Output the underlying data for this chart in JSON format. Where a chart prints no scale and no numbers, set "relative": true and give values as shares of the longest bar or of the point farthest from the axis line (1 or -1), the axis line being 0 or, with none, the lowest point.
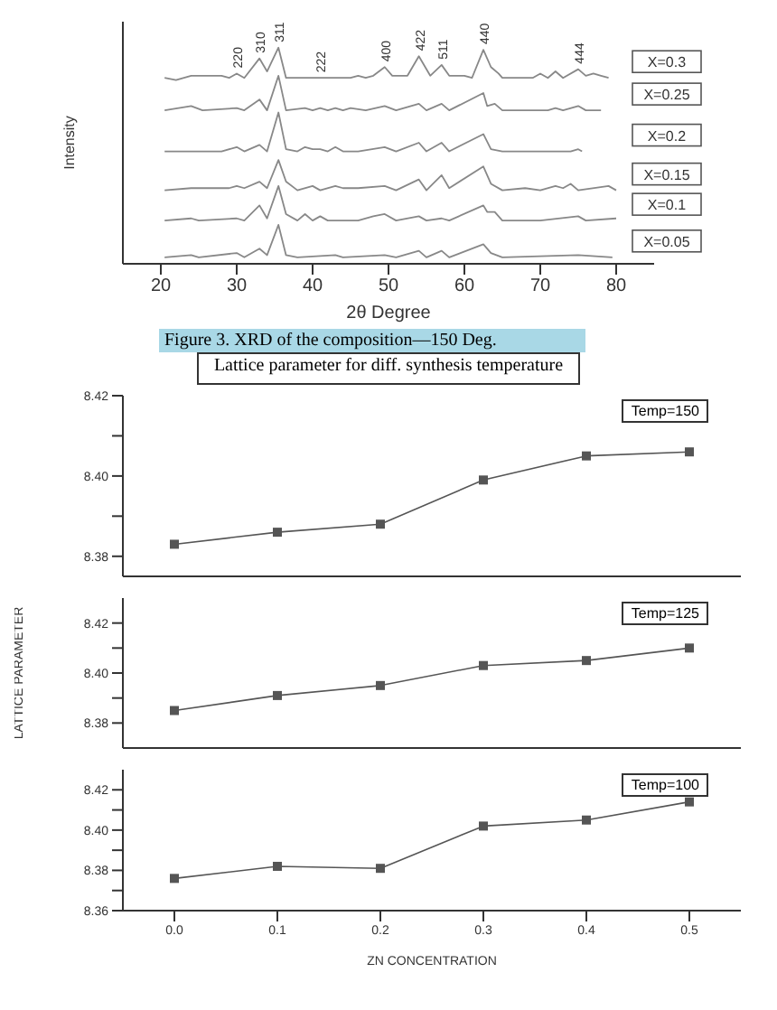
{
  "chart_data": [
    {
      "type": "line",
      "relative": true,
      "xlabel": "2θ Degree",
      "ylabel": "Intensity",
      "xlim": [
        15,
        85
      ],
      "xticks": [
        20,
        30,
        40,
        50,
        60,
        70,
        80
      ],
      "tick_labels": "x",
      "marker": "none",
      "series": [
        {
          "name": "X=0.3",
          "color": "#888888",
          "x": [
            20.5,
            22,
            24,
            26,
            28,
            29,
            30,
            31,
            33,
            34,
            35.5,
            36.5,
            45,
            46,
            47,
            48,
            49.5,
            50.5,
            52.5,
            54,
            55.5,
            57,
            58,
            60,
            61,
            62.5,
            63.5,
            64.5,
            65,
            69,
            70,
            71,
            72,
            73,
            75,
            76,
            77,
            78,
            79
          ],
          "values": [
            0.86,
            0.85,
            0.87,
            0.87,
            0.87,
            0.86,
            0.88,
            0.86,
            0.95,
            0.89,
            1,
            0.86,
            0.86,
            0.87,
            0.86,
            0.87,
            0.91,
            0.87,
            0.87,
            0.96,
            0.87,
            0.92,
            0.87,
            0.87,
            0.86,
            0.99,
            0.91,
            0.88,
            0.86,
            0.86,
            0.88,
            0.86,
            0.89,
            0.86,
            0.9,
            0.87,
            0.88,
            0.87,
            0.86
          ]
        },
        {
          "name": "X=0.25",
          "color": "#888888",
          "x": [
            20.5,
            24,
            25.5,
            30,
            31,
            33,
            34,
            35.5,
            36.5,
            39,
            40,
            41,
            42,
            43,
            44,
            45,
            47,
            49.5,
            51,
            54,
            55,
            57,
            58,
            62.5,
            63,
            64,
            65,
            71,
            72,
            73,
            75,
            76,
            78
          ],
          "values": [
            0.71,
            0.73,
            0.71,
            0.72,
            0.71,
            0.76,
            0.71,
            0.87,
            0.71,
            0.72,
            0.71,
            0.72,
            0.71,
            0.72,
            0.71,
            0.72,
            0.71,
            0.73,
            0.71,
            0.74,
            0.71,
            0.74,
            0.71,
            0.79,
            0.73,
            0.74,
            0.71,
            0.71,
            0.72,
            0.71,
            0.73,
            0.71,
            0.71
          ]
        },
        {
          "name": "X=0.2",
          "color": "#888888",
          "x": [
            20.5,
            23,
            24,
            26,
            28,
            30,
            31,
            33,
            34,
            35.5,
            36.5,
            38,
            39,
            40,
            41,
            42,
            43,
            44,
            46,
            49.5,
            51,
            54,
            55,
            57,
            58,
            62.5,
            63.5,
            65,
            74,
            75,
            75.5
          ],
          "values": [
            0.52,
            0.52,
            0.52,
            0.52,
            0.52,
            0.54,
            0.52,
            0.55,
            0.52,
            0.7,
            0.53,
            0.52,
            0.54,
            0.53,
            0.53,
            0.52,
            0.54,
            0.52,
            0.52,
            0.54,
            0.52,
            0.56,
            0.52,
            0.56,
            0.52,
            0.6,
            0.53,
            0.52,
            0.52,
            0.53,
            0.52
          ]
        },
        {
          "name": "X=0.15",
          "color": "#888888",
          "x": [
            20.5,
            24,
            27,
            29,
            30,
            31,
            33,
            34,
            35.5,
            36.5,
            38,
            40,
            41,
            43,
            44,
            46,
            49.5,
            51,
            54,
            55,
            57,
            58,
            62.5,
            63.5,
            65,
            68,
            70,
            72,
            73,
            74,
            75,
            79,
            80
          ],
          "values": [
            0.34,
            0.35,
            0.35,
            0.35,
            0.36,
            0.35,
            0.38,
            0.35,
            0.48,
            0.38,
            0.34,
            0.36,
            0.34,
            0.36,
            0.35,
            0.35,
            0.36,
            0.34,
            0.39,
            0.34,
            0.41,
            0.35,
            0.45,
            0.37,
            0.34,
            0.35,
            0.34,
            0.36,
            0.35,
            0.37,
            0.34,
            0.36,
            0.34
          ]
        },
        {
          "name": "X=0.1",
          "color": "#888888",
          "x": [
            20.5,
            24,
            25,
            30,
            31,
            33,
            34,
            35.5,
            36.5,
            38,
            39,
            40,
            41,
            42,
            46,
            48,
            49.5,
            51,
            54,
            55,
            57,
            58,
            62.5,
            63,
            64,
            65,
            70,
            75,
            76,
            80
          ],
          "values": [
            0.2,
            0.21,
            0.2,
            0.21,
            0.2,
            0.27,
            0.21,
            0.36,
            0.23,
            0.2,
            0.23,
            0.2,
            0.22,
            0.2,
            0.2,
            0.22,
            0.23,
            0.2,
            0.22,
            0.2,
            0.21,
            0.2,
            0.27,
            0.24,
            0.24,
            0.2,
            0.2,
            0.22,
            0.2,
            0.21
          ]
        },
        {
          "name": "X=0.05",
          "color": "#888888",
          "x": [
            20.5,
            24,
            25,
            30,
            31,
            33,
            34,
            35.5,
            36.5,
            38,
            43,
            44,
            49.5,
            51,
            54,
            55,
            57,
            58,
            62.5,
            63.5,
            65,
            75,
            79.5
          ],
          "values": [
            0.03,
            0.04,
            0.03,
            0.05,
            0.03,
            0.07,
            0.04,
            0.18,
            0.04,
            0.03,
            0.04,
            0.03,
            0.04,
            0.03,
            0.06,
            0.03,
            0.06,
            0.03,
            0.09,
            0.05,
            0.03,
            0.04,
            0.03
          ]
        }
      ],
      "annotations": [
        {
          "text": "220",
          "x": 30,
          "y": 0.88
        },
        {
          "text": "310",
          "x": 33,
          "y": 0.95
        },
        {
          "text": "311",
          "x": 35.5,
          "y": 1
        },
        {
          "text": "222",
          "x": 41,
          "y": 0.86
        },
        {
          "text": "400",
          "x": 49.5,
          "y": 0.91
        },
        {
          "text": "422",
          "x": 54,
          "y": 0.96
        },
        {
          "text": "511",
          "x": 57,
          "y": 0.92
        },
        {
          "text": "440",
          "x": 62.5,
          "y": 0.99
        },
        {
          "text": "444",
          "x": 75,
          "y": 0.9
        },
        "Figure 3. XRD of the composition—150 Deg."
      ]
    },
    {
      "type": "line",
      "title": "Lattice parameter for diff. synthesis temperature",
      "x": [
        0,
        0.1,
        0.2,
        0.3,
        0.4,
        0.5
      ],
      "xlim": [
        -0.05,
        0.55
      ],
      "ylim": [
        8.375,
        8.42
      ],
      "yticks": [
        {
          "value": 8.38,
          "label": "8.38"
        },
        {
          "value": 8.39,
          "label": null
        },
        {
          "value": 8.4,
          "label": "8.40"
        },
        {
          "value": 8.41,
          "label": null
        },
        {
          "value": 8.42,
          "label": "8.42"
        }
      ],
      "tick_labels": "y",
      "marker": "square",
      "series": [
        {
          "color": "#555555",
          "values": [
            8.383,
            8.386,
            8.388,
            8.399,
            8.405,
            8.406
          ]
        }
      ],
      "annotations": [
        "Temp=150"
      ]
    },
    {
      "type": "line",
      "ylabel": "LATTICE PARAMETER",
      "x": [
        0,
        0.1,
        0.2,
        0.3,
        0.4,
        0.5
      ],
      "xlim": [
        -0.05,
        0.55
      ],
      "ylim": [
        8.37,
        8.43
      ],
      "yticks": [
        {
          "value": 8.38,
          "label": "8.38"
        },
        {
          "value": 8.39,
          "label": null
        },
        {
          "value": 8.4,
          "label": "8.40"
        },
        {
          "value": 8.41,
          "label": null
        },
        {
          "value": 8.42,
          "label": "8.42"
        }
      ],
      "tick_labels": "y",
      "marker": "square",
      "series": [
        {
          "color": "#555555",
          "values": [
            8.385,
            8.391,
            8.395,
            8.403,
            8.405,
            8.41
          ]
        }
      ],
      "annotations": [
        "Temp=125"
      ]
    },
    {
      "type": "line",
      "xlabel": "ZN CONCENTRATION",
      "x": [
        0,
        0.1,
        0.2,
        0.3,
        0.4,
        0.5
      ],
      "xlim": [
        -0.05,
        0.55
      ],
      "xticks": [
        {
          "value": 0,
          "label": "0.0"
        },
        0.1,
        0.2,
        0.3,
        0.4,
        0.5
      ],
      "ylim": [
        8.36,
        8.43
      ],
      "yticks": [
        {
          "value": 8.36,
          "label": "8.36"
        },
        {
          "value": 8.37,
          "label": null
        },
        {
          "value": 8.38,
          "label": "8.38"
        },
        {
          "value": 8.39,
          "label": null
        },
        {
          "value": 8.4,
          "label": "8.40"
        },
        {
          "value": 8.41,
          "label": null
        },
        {
          "value": 8.42,
          "label": "8.42"
        }
      ],
      "marker": "square",
      "series": [
        {
          "color": "#555555",
          "values": [
            8.376,
            8.382,
            8.381,
            8.402,
            8.405,
            8.414
          ]
        }
      ],
      "annotations": [
        "Temp=100"
      ]
    }
  ]
}
